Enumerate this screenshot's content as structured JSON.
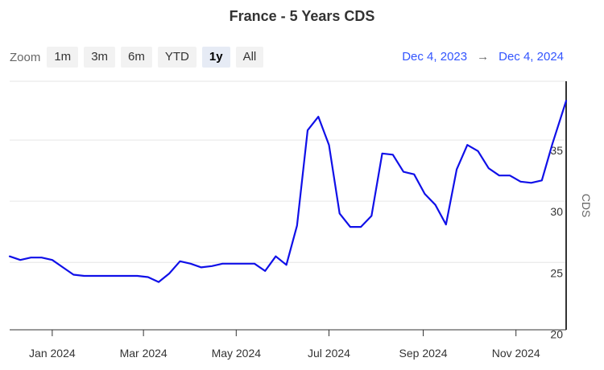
{
  "title": "France - 5 Years CDS",
  "zoom": {
    "label": "Zoom",
    "buttons": [
      {
        "label": "1m",
        "active": false
      },
      {
        "label": "3m",
        "active": false
      },
      {
        "label": "6m",
        "active": false
      },
      {
        "label": "YTD",
        "active": false
      },
      {
        "label": "1y",
        "active": true
      },
      {
        "label": "All",
        "active": false
      }
    ]
  },
  "range": {
    "from": "Dec 4, 2023",
    "arrow": "→",
    "to": "Dec 4, 2024"
  },
  "colors": {
    "line": "#1010e8",
    "grid": "#e6e6e6",
    "axis": "#333333",
    "range_text": "#3355ff"
  },
  "chart_data": {
    "type": "line",
    "title": "France - 5 Years CDS",
    "ylabel": "CDS",
    "xlabel": "",
    "y_ticks": [
      20,
      25,
      30,
      35
    ],
    "ylim": [
      19.5,
      39.8
    ],
    "xlim": [
      "2023-12-04",
      "2024-12-04"
    ],
    "x_ticks": [
      {
        "date": "2024-01-01",
        "label": "Jan 2024"
      },
      {
        "date": "2024-03-01",
        "label": "Mar 2024"
      },
      {
        "date": "2024-05-01",
        "label": "May 2024"
      },
      {
        "date": "2024-07-01",
        "label": "Jul 2024"
      },
      {
        "date": "2024-09-01",
        "label": "Sep 2024"
      },
      {
        "date": "2024-11-01",
        "label": "Nov 2024"
      }
    ],
    "grid": true,
    "legend": "none",
    "series": [
      {
        "name": "",
        "x": [
          "2023-12-04",
          "2023-12-11",
          "2023-12-18",
          "2023-12-25",
          "2024-01-01",
          "2024-01-08",
          "2024-01-15",
          "2024-01-22",
          "2024-01-29",
          "2024-02-05",
          "2024-02-12",
          "2024-02-19",
          "2024-02-26",
          "2024-03-04",
          "2024-03-11",
          "2024-03-18",
          "2024-03-25",
          "2024-04-01",
          "2024-04-08",
          "2024-04-15",
          "2024-04-22",
          "2024-04-29",
          "2024-05-06",
          "2024-05-13",
          "2024-05-20",
          "2024-05-27",
          "2024-06-03",
          "2024-06-10",
          "2024-06-17",
          "2024-06-24",
          "2024-07-01",
          "2024-07-08",
          "2024-07-15",
          "2024-07-22",
          "2024-07-29",
          "2024-08-05",
          "2024-08-12",
          "2024-08-19",
          "2024-08-26",
          "2024-09-02",
          "2024-09-09",
          "2024-09-16",
          "2024-09-23",
          "2024-09-30",
          "2024-10-07",
          "2024-10-14",
          "2024-10-21",
          "2024-10-28",
          "2024-11-04",
          "2024-11-11",
          "2024-11-18",
          "2024-11-25",
          "2024-12-04"
        ],
        "y": [
          25.5,
          25.2,
          25.4,
          25.4,
          25.2,
          24.6,
          24.0,
          23.9,
          23.9,
          23.9,
          23.9,
          23.9,
          23.9,
          23.8,
          23.4,
          24.1,
          25.1,
          24.9,
          24.6,
          24.7,
          24.9,
          24.9,
          24.9,
          24.9,
          24.3,
          25.5,
          24.8,
          28.0,
          35.8,
          36.9,
          34.6,
          29.0,
          27.9,
          27.9,
          28.8,
          33.9,
          33.8,
          32.4,
          32.2,
          30.6,
          29.7,
          28.1,
          32.6,
          34.6,
          34.1,
          32.7,
          32.1,
          32.1,
          31.6,
          31.5,
          31.7,
          34.7,
          38.2
        ]
      }
    ]
  }
}
